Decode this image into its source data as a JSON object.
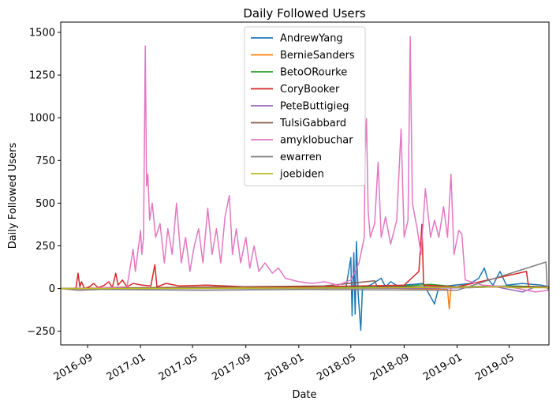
{
  "chart_data": {
    "type": "line",
    "title": "Daily Followed Users",
    "xlabel": "Date",
    "ylabel": "Daily Followed Users",
    "x_type": "date",
    "xlim": [
      "2016-07-01",
      "2019-08-01"
    ],
    "ylim": [
      -330,
      1560
    ],
    "x_ticks": [
      "2016-09",
      "2017-01",
      "2017-05",
      "2017-09",
      "2018-01",
      "2018-05",
      "2018-09",
      "2019-01",
      "2019-05"
    ],
    "x_tick_dates": [
      "2016-09-01",
      "2017-01-01",
      "2017-05-01",
      "2017-09-01",
      "2018-01-01",
      "2018-05-01",
      "2018-09-01",
      "2019-01-01",
      "2019-05-01"
    ],
    "y_ticks": [
      -250,
      0,
      250,
      500,
      750,
      1000,
      1250,
      1500
    ],
    "grid": false,
    "legend_position": "top-center",
    "series": [
      {
        "name": "AndrewYang",
        "color": "#1f77b4",
        "points": [
          [
            "2018-03-01",
            0
          ],
          [
            "2018-04-20",
            5
          ],
          [
            "2018-05-01",
            180
          ],
          [
            "2018-05-04",
            -160
          ],
          [
            "2018-05-08",
            210
          ],
          [
            "2018-05-11",
            -150
          ],
          [
            "2018-05-14",
            275
          ],
          [
            "2018-05-18",
            -30
          ],
          [
            "2018-05-24",
            -245
          ],
          [
            "2018-05-28",
            10
          ],
          [
            "2018-06-15",
            20
          ],
          [
            "2018-07-10",
            60
          ],
          [
            "2018-07-20",
            10
          ],
          [
            "2018-08-01",
            40
          ],
          [
            "2018-08-20",
            10
          ],
          [
            "2018-09-01",
            20
          ],
          [
            "2018-10-15",
            30
          ],
          [
            "2018-11-10",
            -90
          ],
          [
            "2018-11-20",
            10
          ],
          [
            "2019-02-01",
            30
          ],
          [
            "2019-02-20",
            60
          ],
          [
            "2019-03-05",
            120
          ],
          [
            "2019-03-12",
            60
          ],
          [
            "2019-03-25",
            20
          ],
          [
            "2019-04-10",
            100
          ],
          [
            "2019-04-25",
            20
          ],
          [
            "2019-06-01",
            30
          ],
          [
            "2019-07-15",
            20
          ],
          [
            "2019-08-01",
            10
          ]
        ]
      },
      {
        "name": "BernieSanders",
        "color": "#ff7f0e",
        "points": [
          [
            "2016-07-01",
            0
          ],
          [
            "2016-08-20",
            2
          ],
          [
            "2017-06-01",
            3
          ],
          [
            "2018-06-01",
            5
          ],
          [
            "2018-12-10",
            -5
          ],
          [
            "2018-12-14",
            -120
          ],
          [
            "2018-12-18",
            5
          ],
          [
            "2019-05-01",
            10
          ],
          [
            "2019-08-01",
            5
          ]
        ]
      },
      {
        "name": "BetoORourke",
        "color": "#2ca02c",
        "points": [
          [
            "2016-07-01",
            0
          ],
          [
            "2018-01-01",
            2
          ],
          [
            "2018-08-01",
            10
          ],
          [
            "2018-11-01",
            25
          ],
          [
            "2019-01-01",
            10
          ],
          [
            "2019-05-01",
            15
          ],
          [
            "2019-08-01",
            10
          ]
        ]
      },
      {
        "name": "CoryBooker",
        "color": "#d62728",
        "points": [
          [
            "2016-07-01",
            0
          ],
          [
            "2016-08-05",
            0
          ],
          [
            "2016-08-10",
            90
          ],
          [
            "2016-08-14",
            10
          ],
          [
            "2016-08-18",
            40
          ],
          [
            "2016-08-25",
            0
          ],
          [
            "2016-09-05",
            10
          ],
          [
            "2016-09-15",
            30
          ],
          [
            "2016-09-25",
            5
          ],
          [
            "2016-10-10",
            20
          ],
          [
            "2016-10-20",
            40
          ],
          [
            "2016-10-28",
            5
          ],
          [
            "2016-11-05",
            90
          ],
          [
            "2016-11-10",
            20
          ],
          [
            "2016-11-20",
            50
          ],
          [
            "2016-12-01",
            10
          ],
          [
            "2016-12-15",
            30
          ],
          [
            "2017-01-05",
            20
          ],
          [
            "2017-01-25",
            15
          ],
          [
            "2017-02-03",
            140
          ],
          [
            "2017-02-08",
            10
          ],
          [
            "2017-03-01",
            30
          ],
          [
            "2017-04-01",
            15
          ],
          [
            "2017-06-01",
            20
          ],
          [
            "2017-09-01",
            10
          ],
          [
            "2018-01-01",
            10
          ],
          [
            "2018-06-01",
            15
          ],
          [
            "2018-09-01",
            20
          ],
          [
            "2018-10-05",
            100
          ],
          [
            "2018-10-12",
            375
          ],
          [
            "2018-10-16",
            20
          ],
          [
            "2019-01-01",
            10
          ],
          [
            "2019-06-10",
            100
          ],
          [
            "2019-06-15",
            10
          ],
          [
            "2019-08-01",
            10
          ]
        ]
      },
      {
        "name": "PeteButtigieg",
        "color": "#9467bd",
        "points": [
          [
            "2016-07-01",
            0
          ],
          [
            "2018-10-01",
            2
          ],
          [
            "2019-02-01",
            5
          ],
          [
            "2019-04-01",
            10
          ],
          [
            "2019-06-01",
            -20
          ],
          [
            "2019-07-01",
            10
          ],
          [
            "2019-08-01",
            5
          ]
        ]
      },
      {
        "name": "TulsiGabbard",
        "color": "#8c564b",
        "points": [
          [
            "2016-07-01",
            0
          ],
          [
            "2017-01-01",
            5
          ],
          [
            "2017-08-01",
            10
          ],
          [
            "2018-03-01",
            15
          ],
          [
            "2018-06-25",
            45
          ],
          [
            "2018-07-01",
            10
          ],
          [
            "2019-01-01",
            10
          ],
          [
            "2019-08-01",
            10
          ]
        ]
      },
      {
        "name": "amyklobuchar",
        "color": "#e377c2",
        "points": [
          [
            "2016-07-01",
            0
          ],
          [
            "2016-08-10",
            -10
          ],
          [
            "2016-10-01",
            5
          ],
          [
            "2016-12-01",
            10
          ],
          [
            "2016-12-15",
            230
          ],
          [
            "2016-12-20",
            100
          ],
          [
            "2017-01-01",
            340
          ],
          [
            "2017-01-04",
            200
          ],
          [
            "2017-01-08",
            300
          ],
          [
            "2017-01-12",
            1420
          ],
          [
            "2017-01-15",
            600
          ],
          [
            "2017-01-18",
            670
          ],
          [
            "2017-01-22",
            400
          ],
          [
            "2017-01-28",
            500
          ],
          [
            "2017-02-05",
            300
          ],
          [
            "2017-02-15",
            380
          ],
          [
            "2017-02-25",
            150
          ],
          [
            "2017-03-05",
            350
          ],
          [
            "2017-03-15",
            200
          ],
          [
            "2017-03-25",
            500
          ],
          [
            "2017-04-05",
            150
          ],
          [
            "2017-04-15",
            300
          ],
          [
            "2017-04-25",
            100
          ],
          [
            "2017-05-05",
            250
          ],
          [
            "2017-05-15",
            350
          ],
          [
            "2017-05-25",
            150
          ],
          [
            "2017-06-05",
            470
          ],
          [
            "2017-06-15",
            200
          ],
          [
            "2017-06-25",
            350
          ],
          [
            "2017-07-05",
            150
          ],
          [
            "2017-07-15",
            420
          ],
          [
            "2017-07-25",
            545
          ],
          [
            "2017-08-01",
            200
          ],
          [
            "2017-08-10",
            350
          ],
          [
            "2017-08-20",
            150
          ],
          [
            "2017-09-01",
            300
          ],
          [
            "2017-09-10",
            120
          ],
          [
            "2017-09-20",
            250
          ],
          [
            "2017-10-01",
            100
          ],
          [
            "2017-10-15",
            150
          ],
          [
            "2017-11-01",
            90
          ],
          [
            "2017-11-15",
            120
          ],
          [
            "2017-12-01",
            60
          ],
          [
            "2018-01-01",
            40
          ],
          [
            "2018-02-01",
            30
          ],
          [
            "2018-03-01",
            40
          ],
          [
            "2018-04-01",
            20
          ],
          [
            "2018-05-01",
            50
          ],
          [
            "2018-05-20",
            150
          ],
          [
            "2018-06-01",
            300
          ],
          [
            "2018-06-03",
            790
          ],
          [
            "2018-06-06",
            995
          ],
          [
            "2018-06-10",
            450
          ],
          [
            "2018-06-15",
            300
          ],
          [
            "2018-06-25",
            380
          ],
          [
            "2018-07-03",
            740
          ],
          [
            "2018-07-10",
            300
          ],
          [
            "2018-07-20",
            420
          ],
          [
            "2018-08-01",
            260
          ],
          [
            "2018-08-15",
            400
          ],
          [
            "2018-08-25",
            935
          ],
          [
            "2018-09-01",
            300
          ],
          [
            "2018-09-10",
            400
          ],
          [
            "2018-09-15",
            1475
          ],
          [
            "2018-09-20",
            500
          ],
          [
            "2018-10-01",
            350
          ],
          [
            "2018-10-10",
            200
          ],
          [
            "2018-10-20",
            585
          ],
          [
            "2018-11-01",
            300
          ],
          [
            "2018-11-10",
            400
          ],
          [
            "2018-11-20",
            300
          ],
          [
            "2018-12-01",
            480
          ],
          [
            "2018-12-10",
            300
          ],
          [
            "2018-12-18",
            670
          ],
          [
            "2018-12-25",
            200
          ],
          [
            "2019-01-05",
            340
          ],
          [
            "2019-01-12",
            320
          ],
          [
            "2019-01-20",
            50
          ],
          [
            "2019-03-01",
            20
          ],
          [
            "2019-05-01",
            10
          ],
          [
            "2019-07-01",
            -20
          ],
          [
            "2019-08-01",
            -10
          ]
        ]
      },
      {
        "name": "ewarren",
        "color": "#7f7f7f",
        "points": [
          [
            "2016-07-01",
            0
          ],
          [
            "2016-08-15",
            -10
          ],
          [
            "2016-10-01",
            -5
          ],
          [
            "2017-06-01",
            -10
          ],
          [
            "2018-01-01",
            -5
          ],
          [
            "2019-01-01",
            -10
          ],
          [
            "2019-07-25",
            155
          ],
          [
            "2019-07-28",
            0
          ],
          [
            "2019-08-01",
            -5
          ]
        ]
      },
      {
        "name": "joebiden",
        "color": "#bcbd22",
        "points": [
          [
            "2016-07-01",
            0
          ],
          [
            "2017-06-01",
            2
          ],
          [
            "2018-06-01",
            3
          ],
          [
            "2019-04-20",
            10
          ],
          [
            "2019-05-01",
            5
          ],
          [
            "2019-08-01",
            5
          ]
        ]
      }
    ]
  }
}
